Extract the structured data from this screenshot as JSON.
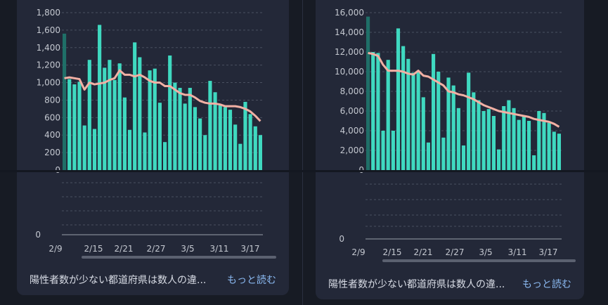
{
  "posts": [
    {
      "chart_data": {
        "type": "bar",
        "upper": {
          "y_ticks": [
            "1,800",
            "1,600",
            "1,400",
            "1,200",
            "1,000",
            "800",
            "600",
            "400",
            "200",
            "0"
          ],
          "ylim": [
            0,
            1800
          ],
          "values": [
            1560,
            1040,
            980,
            1010,
            510,
            1260,
            470,
            1660,
            1170,
            1260,
            1030,
            1220,
            830,
            460,
            1460,
            1290,
            430,
            1140,
            1160,
            770,
            320,
            1310,
            1000,
            940,
            760,
            940,
            720,
            590,
            400,
            1020,
            890,
            740,
            720,
            690,
            520,
            300,
            780,
            640,
            500,
            400
          ],
          "average": [
            1050,
            1060,
            1050,
            1040,
            920,
            1000,
            980,
            990,
            1000,
            1030,
            1050,
            1140,
            1090,
            1090,
            1070,
            1090,
            1060,
            1020,
            1000,
            1000,
            960,
            960,
            920,
            880,
            860,
            860,
            830,
            790,
            770,
            760,
            760,
            750,
            730,
            730,
            730,
            720,
            700,
            670,
            620,
            560
          ]
        },
        "lower": {
          "y_ticks": [
            "0"
          ]
        },
        "x_ticks": [
          "2/9",
          "2/15",
          "2/21",
          "2/27",
          "3/5",
          "3/11",
          "3/17"
        ]
      },
      "footer": {
        "text": "陽性者数が少ない都道府県は数人の違...",
        "more": "もっと読む"
      }
    },
    {
      "chart_data": {
        "type": "bar",
        "upper": {
          "y_ticks": [
            "16,000",
            "14,000",
            "12,000",
            "10,000",
            "8,000",
            "6,000",
            "4,000",
            "2,000",
            "0"
          ],
          "ylim": [
            0,
            16000
          ],
          "values": [
            15600,
            12000,
            11900,
            4000,
            11200,
            4000,
            14400,
            12600,
            11300,
            9900,
            10100,
            7400,
            2800,
            11800,
            10000,
            3300,
            9400,
            8600,
            6300,
            2500,
            9900,
            7900,
            7100,
            6000,
            6200,
            5500,
            2100,
            6500,
            7100,
            6300,
            5100,
            5500,
            5000,
            1500,
            6000,
            5800,
            4800,
            3900,
            3700
          ],
          "average": [
            11900,
            11800,
            11600,
            10700,
            10100,
            10100,
            10100,
            10000,
            9800,
            9700,
            10100,
            9600,
            9500,
            9200,
            8900,
            8600,
            8000,
            7900,
            7700,
            7600,
            7400,
            7200,
            6900,
            6600,
            6400,
            6200,
            6000,
            5900,
            5800,
            5700,
            5600,
            5500,
            5400,
            5200,
            5100,
            5000,
            4900,
            4700,
            4400
          ]
        },
        "lower": {
          "y_ticks": [
            "0"
          ]
        },
        "x_ticks": [
          "2/9",
          "2/15",
          "2/21",
          "2/27",
          "3/5",
          "3/11",
          "3/17"
        ]
      },
      "footer": {
        "text": "陽性者数が少ない都道府県は数人の違...",
        "more": "もっと読む"
      }
    }
  ]
}
